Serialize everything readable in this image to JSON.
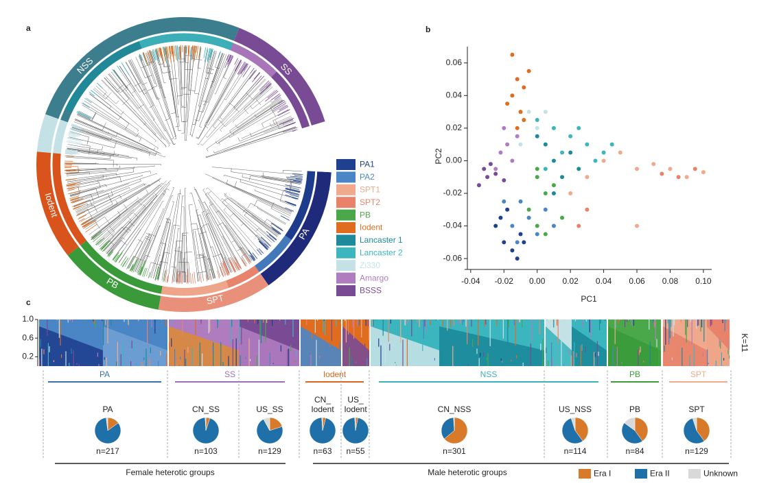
{
  "panel_labels": [
    "a",
    "b",
    "c"
  ],
  "tree": {
    "groups": [
      {
        "name": "NSS",
        "color": "#3d7e8e"
      },
      {
        "name": "SS",
        "color": "#7a4b95"
      },
      {
        "name": "PA",
        "color": "#1f2a7a"
      },
      {
        "name": "SPT",
        "color": "#e8907a"
      },
      {
        "name": "PB",
        "color": "#3a9a3a"
      },
      {
        "name": "Iodent",
        "color": "#d9541c"
      }
    ]
  },
  "chart_data": {
    "type": "scatter",
    "x_label": "PC1",
    "y_label": "PC2",
    "xlim": [
      -0.042,
      0.105
    ],
    "ylim": [
      -0.065,
      0.07
    ],
    "xticks": [
      -0.04,
      -0.02,
      {
        "value": 0,
        "label": "0.00"
      },
      0.02,
      0.04,
      0.06,
      0.08,
      {
        "value": 0.1,
        "label": "0.10"
      }
    ],
    "yticks": [
      -0.06,
      -0.04,
      -0.02,
      {
        "value": 0,
        "label": "0.00"
      },
      0.02,
      0.04,
      0.06
    ],
    "series": [
      {
        "name": "PA1",
        "color": "#1f3f8f",
        "x": [
          -0.02,
          -0.015,
          -0.01,
          -0.022,
          -0.018,
          -0.012,
          -0.025,
          -0.008
        ],
        "y": [
          -0.05,
          -0.055,
          -0.045,
          -0.035,
          -0.03,
          -0.06,
          -0.04,
          -0.05
        ]
      },
      {
        "name": "PA2",
        "color": "#4a86c5",
        "x": [
          -0.015,
          -0.005,
          -0.01,
          0.0,
          -0.02,
          0.005,
          -0.012,
          0.01
        ],
        "y": [
          -0.04,
          -0.035,
          -0.025,
          -0.045,
          -0.025,
          -0.03,
          -0.05,
          -0.04
        ]
      },
      {
        "name": "SPT1",
        "color": "#f0a98c",
        "x": [
          0.04,
          0.06,
          0.08,
          0.09,
          0.1,
          0.05,
          0.07,
          0.03,
          0.02,
          0.06
        ],
        "y": [
          0.0,
          -0.005,
          -0.005,
          -0.01,
          -0.007,
          0.005,
          -0.002,
          -0.01,
          -0.02,
          -0.04
        ]
      },
      {
        "name": "SPT2",
        "color": "#e8826a",
        "x": [
          0.095,
          0.085,
          0.075,
          0.03,
          0.025
        ],
        "y": [
          -0.005,
          -0.01,
          -0.008,
          -0.03,
          -0.04
        ]
      },
      {
        "name": "PB",
        "color": "#4aa84a",
        "x": [
          0.0,
          0.005,
          -0.005,
          0.0,
          0.01,
          0.015,
          0.005,
          0.0
        ],
        "y": [
          -0.01,
          -0.02,
          -0.03,
          -0.04,
          -0.015,
          -0.035,
          -0.045,
          -0.005
        ]
      },
      {
        "name": "Iodent",
        "color": "#e06d1f",
        "x": [
          -0.015,
          -0.012,
          -0.008,
          -0.015,
          -0.01,
          -0.018,
          -0.005,
          -0.012,
          -0.008
        ],
        "y": [
          0.065,
          0.05,
          0.045,
          0.04,
          0.03,
          0.035,
          0.055,
          0.02,
          0.025
        ]
      },
      {
        "name": "Lancaster 1",
        "color": "#1c8a9a",
        "x": [
          0.005,
          0.01,
          0.015,
          0.02,
          0.0,
          0.025,
          0.01
        ],
        "y": [
          0.01,
          0.0,
          -0.01,
          0.005,
          0.015,
          -0.005,
          -0.02
        ]
      },
      {
        "name": "Lancaster 2",
        "color": "#3bb6be",
        "x": [
          0.0,
          0.01,
          0.02,
          0.03,
          0.04,
          0.015,
          0.005,
          0.025,
          0.035,
          0.045
        ],
        "y": [
          0.025,
          0.02,
          0.015,
          0.01,
          0.005,
          0.005,
          -0.005,
          0.02,
          0.0,
          0.01
        ]
      },
      {
        "name": "Zi330",
        "color": "#c4e2e6",
        "x": [
          -0.005,
          0.0,
          0.005,
          -0.01
        ],
        "y": [
          0.03,
          0.02,
          0.03,
          0.01
        ]
      },
      {
        "name": "Amargo",
        "color": "#b07cc0",
        "x": [
          -0.02,
          -0.018,
          -0.015,
          -0.022,
          -0.025,
          -0.012
        ],
        "y": [
          0.02,
          0.01,
          0.0,
          0.005,
          -0.005,
          0.015
        ]
      },
      {
        "name": "BSSS",
        "color": "#7a4b95",
        "x": [
          -0.035,
          -0.03,
          -0.028,
          -0.025,
          -0.032,
          -0.02
        ],
        "y": [
          -0.015,
          -0.01,
          -0.002,
          -0.008,
          -0.005,
          -0.012
        ]
      }
    ]
  },
  "structure": {
    "k_label": "K=11",
    "ylim": [
      0,
      1
    ],
    "yticks": [
      {
        "value": 1,
        "label": "1.0"
      },
      0.6,
      0.2
    ],
    "groups": [
      {
        "name": "PA",
        "color": "#3a6fa8"
      },
      {
        "name": "SS",
        "color": "#9b6fb0"
      },
      {
        "name": "Iodent",
        "color": "#d9641c"
      },
      {
        "name": "NSS",
        "color": "#3bb0b8"
      },
      {
        "name": "PB",
        "color": "#3a9a3a"
      },
      {
        "name": "SPT",
        "color": "#f0a98c"
      }
    ]
  },
  "pies": {
    "legend": [
      {
        "name": "Era I",
        "color": "#d97a2b"
      },
      {
        "name": "Era II",
        "color": "#1f6fa8"
      },
      {
        "name": "Unknown",
        "color": "#d9d9d9"
      }
    ],
    "items": [
      {
        "label": [
          "PA"
        ],
        "n": "n=217",
        "values": [
          15,
          83,
          2
        ]
      },
      {
        "label": [
          "CN_SS"
        ],
        "n": "n=103",
        "values": [
          5,
          94,
          1
        ]
      },
      {
        "label": [
          "US_SS"
        ],
        "n": "n=129",
        "values": [
          20,
          72,
          8
        ]
      },
      {
        "label": [
          "CN_",
          "Iodent"
        ],
        "n": "n=63",
        "values": [
          4,
          95,
          1
        ]
      },
      {
        "label": [
          "US_",
          "Iodent"
        ],
        "n": "n=55",
        "values": [
          3,
          96,
          1
        ]
      },
      {
        "label": [
          "CN_NSS"
        ],
        "n": "n=301",
        "values": [
          64,
          35,
          1
        ]
      },
      {
        "label": [
          "US_NSS"
        ],
        "n": "n=114",
        "values": [
          40,
          55,
          5
        ]
      },
      {
        "label": [
          "PB"
        ],
        "n": "n=84",
        "values": [
          40,
          45,
          15
        ]
      },
      {
        "label": [
          "SPT"
        ],
        "n": "n=129",
        "values": [
          40,
          55,
          5
        ]
      }
    ]
  },
  "footer": {
    "female": "Female heterotic groups",
    "male": "Male heterotic groups"
  }
}
